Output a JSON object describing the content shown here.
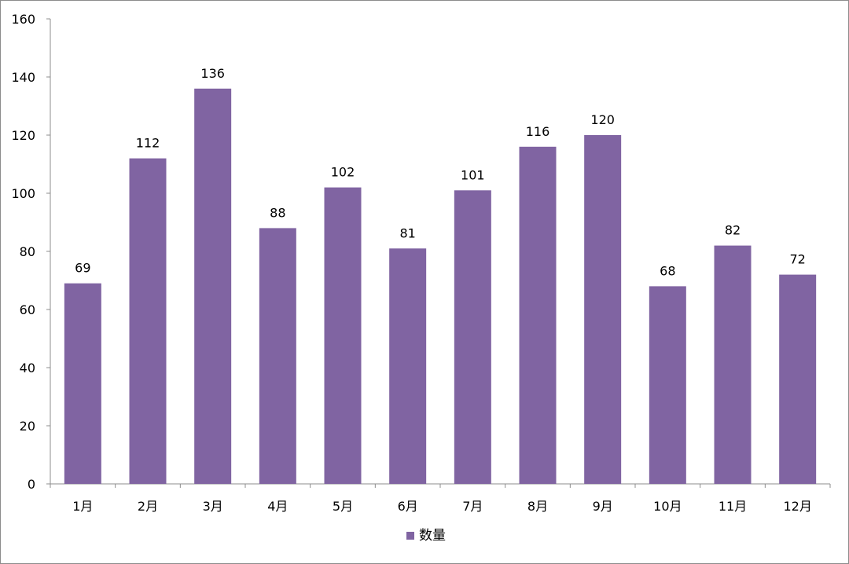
{
  "chart_data": {
    "type": "bar",
    "categories": [
      "1月",
      "2月",
      "3月",
      "4月",
      "5月",
      "6月",
      "7月",
      "8月",
      "9月",
      "10月",
      "11月",
      "12月"
    ],
    "series": [
      {
        "name": "数量",
        "values": [
          69,
          112,
          136,
          88,
          102,
          81,
          101,
          116,
          120,
          68,
          82,
          72
        ],
        "color": "#8064a2"
      }
    ],
    "title": "",
    "xlabel": "",
    "ylabel": "",
    "ylim": [
      0,
      160
    ],
    "yticks": [
      0,
      20,
      40,
      60,
      80,
      100,
      120,
      140,
      160
    ],
    "grid": false,
    "data_labels": true,
    "legend_position": "bottom"
  }
}
